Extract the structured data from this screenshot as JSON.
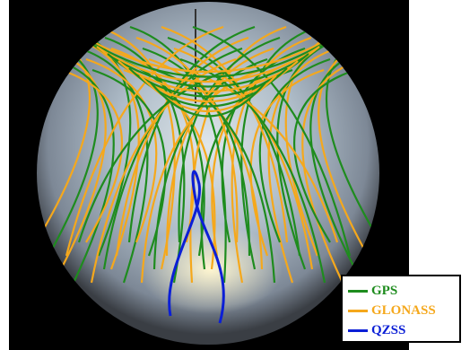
{
  "legend": {
    "items": [
      {
        "label": "GPS",
        "color": "#1e8c1e"
      },
      {
        "label": "GLONASS",
        "color": "#f5a81c"
      },
      {
        "label": "QZSS",
        "color": "#0b1fd6"
      }
    ]
  }
}
